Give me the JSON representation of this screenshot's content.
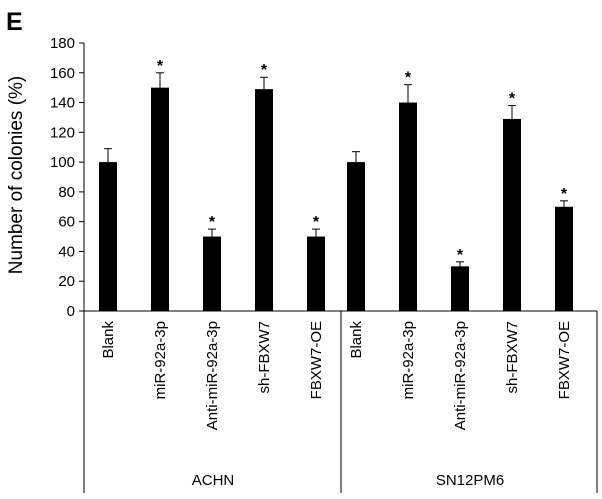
{
  "panel_label": "E",
  "chart_data": {
    "type": "bar",
    "ylabel": "Number of colonies (%)",
    "ylim": [
      0,
      180
    ],
    "yticks": [
      0,
      20,
      40,
      60,
      80,
      100,
      120,
      140,
      160,
      180
    ],
    "legend": "none",
    "grid": false,
    "bar_color": "#000000",
    "groups": [
      {
        "name": "ACHN",
        "categories": [
          "Blank",
          "miR-92a-3p",
          "Anti-miR-92a-3p",
          "sh-FBXW7",
          "FBXW7-OE"
        ],
        "values": [
          100,
          150,
          50,
          149,
          50
        ],
        "errors": [
          9,
          10,
          5,
          8,
          5
        ],
        "significance": [
          "",
          "*",
          "*",
          "*",
          "*"
        ]
      },
      {
        "name": "SN12PM6",
        "categories": [
          "Blank",
          "miR-92a-3p",
          "Anti-miR-92a-3p",
          "sh-FBXW7",
          "FBXW7-OE"
        ],
        "values": [
          100,
          140,
          30,
          129,
          70
        ],
        "errors": [
          7,
          12,
          3,
          9,
          4
        ],
        "significance": [
          "",
          "*",
          "*",
          "*",
          "*"
        ]
      }
    ]
  }
}
